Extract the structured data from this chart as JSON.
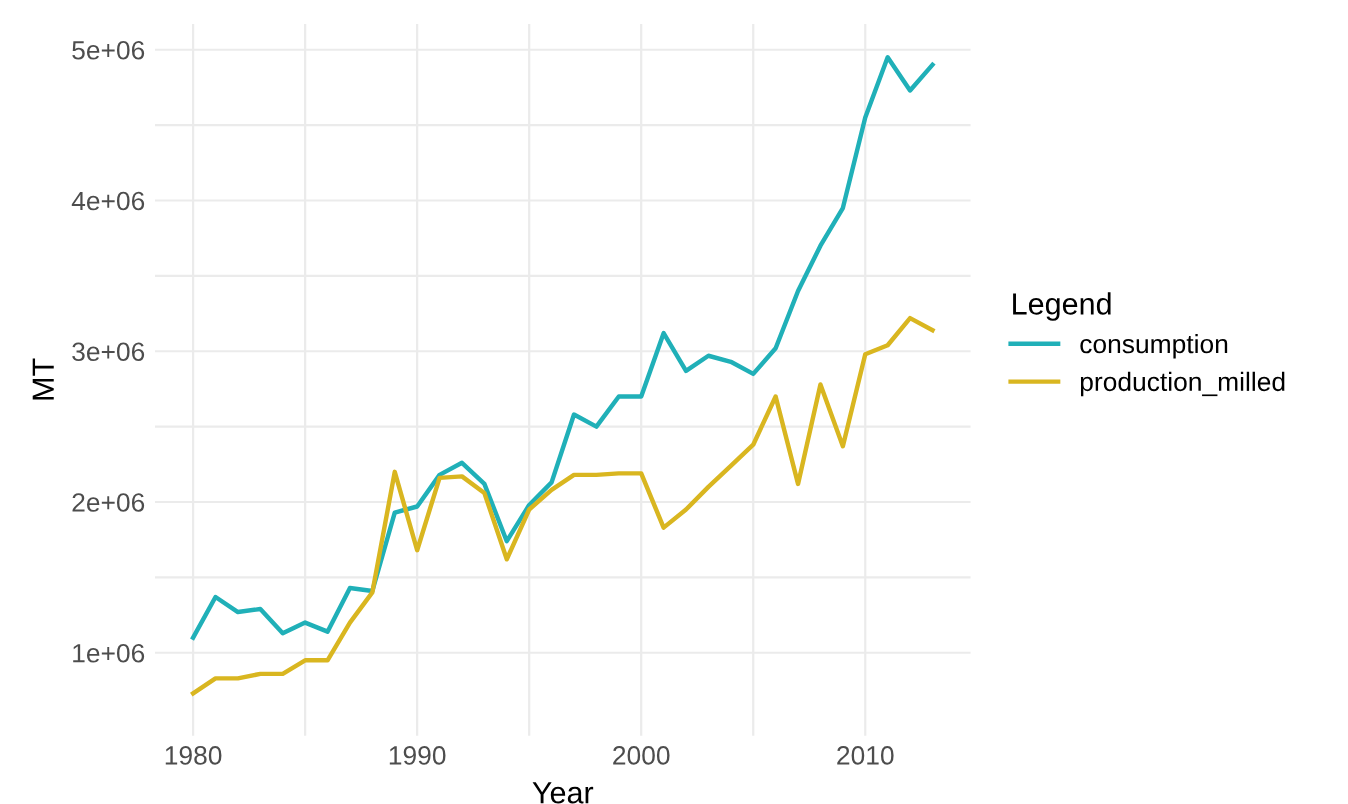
{
  "chart_data": {
    "type": "line",
    "xlabel": "Year",
    "ylabel": "MT",
    "legend_title": "Legend",
    "legend": "right",
    "grid": true,
    "line_style": "solid",
    "marker": "none",
    "x": [
      1980,
      1981,
      1982,
      1983,
      1984,
      1985,
      1986,
      1987,
      1988,
      1989,
      1990,
      1991,
      1992,
      1993,
      1994,
      1995,
      1996,
      1997,
      1998,
      1999,
      2000,
      2001,
      2002,
      2003,
      2004,
      2005,
      2006,
      2007,
      2008,
      2009,
      2010,
      2011,
      2012,
      2013
    ],
    "series": [
      {
        "name": "consumption",
        "color": "#20b0b8",
        "values": [
          1100000,
          1370000,
          1270000,
          1290000,
          1130000,
          1200000,
          1140000,
          1430000,
          1410000,
          1930000,
          1970000,
          2180000,
          2260000,
          2120000,
          1740000,
          1980000,
          2130000,
          2580000,
          2500000,
          2700000,
          2700000,
          3120000,
          2870000,
          2970000,
          2930000,
          2850000,
          3020000,
          3400000,
          3700000,
          3950000,
          4550000,
          4950000,
          4730000,
          4900000
        ]
      },
      {
        "name": "production_milled",
        "color": "#d9b620",
        "values": [
          730000,
          830000,
          830000,
          860000,
          860000,
          950000,
          950000,
          1200000,
          1400000,
          2200000,
          1680000,
          2160000,
          2170000,
          2060000,
          1620000,
          1950000,
          2080000,
          2180000,
          2180000,
          2190000,
          2190000,
          1830000,
          1950000,
          2100000,
          2240000,
          2380000,
          2700000,
          2120000,
          2780000,
          2370000,
          2980000,
          3040000,
          3220000,
          3140000
        ]
      }
    ],
    "xlim": [
      1978.3,
      2014.7
    ],
    "ylim": [
      450000,
      5170000
    ],
    "xticks": [
      1980,
      {
        "value": 1985,
        "label": null
      },
      1990,
      {
        "value": 1995,
        "label": null
      },
      2000,
      {
        "value": 2005,
        "label": null
      },
      2010
    ],
    "yticks": [
      {
        "value": 1000000,
        "label": "1e+06"
      },
      {
        "value": 1500000,
        "label": null
      },
      {
        "value": 2000000,
        "label": "2e+06"
      },
      {
        "value": 2500000,
        "label": null
      },
      {
        "value": 3000000,
        "label": "3e+06"
      },
      {
        "value": 3500000,
        "label": null
      },
      {
        "value": 4000000,
        "label": "4e+06"
      },
      {
        "value": 4500000,
        "label": null
      },
      {
        "value": 5000000,
        "label": "5e+06"
      }
    ]
  }
}
